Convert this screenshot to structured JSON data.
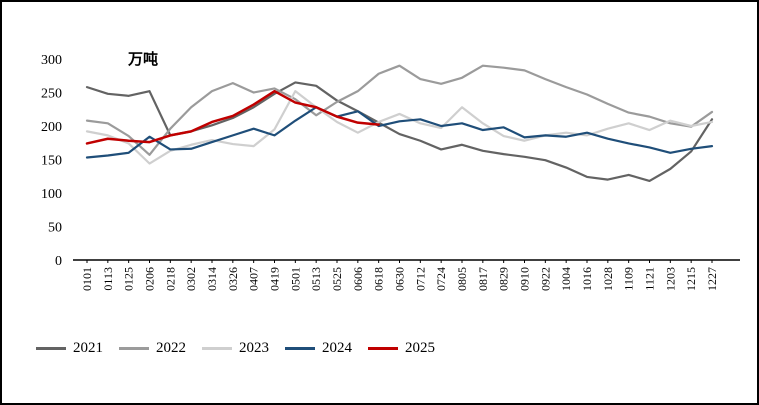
{
  "unit_label": "万吨",
  "chart_data": {
    "type": "line",
    "title": "",
    "xlabel": "",
    "ylabel": "万吨",
    "ylim": [
      0,
      300
    ],
    "yticks": [
      0,
      50,
      100,
      150,
      200,
      250,
      300
    ],
    "grid": false,
    "legend_position": "bottom",
    "x": [
      "0101",
      "0113",
      "0125",
      "0206",
      "0218",
      "0302",
      "0314",
      "0326",
      "0407",
      "0419",
      "0501",
      "0513",
      "0525",
      "0606",
      "0618",
      "0630",
      "0712",
      "0724",
      "0805",
      "0817",
      "0829",
      "0910",
      "0922",
      "1004",
      "1016",
      "1028",
      "1109",
      "1121",
      "1203",
      "1215",
      "1227"
    ],
    "series": [
      {
        "name": "2021",
        "color": "#636363",
        "stroke_width": 2.2,
        "values": [
          258,
          248,
          245,
          252,
          186,
          192,
          201,
          212,
          228,
          248,
          265,
          260,
          238,
          222,
          205,
          188,
          178,
          165,
          172,
          163,
          158,
          154,
          149,
          138,
          124,
          120,
          127,
          118,
          136,
          162,
          210
        ]
      },
      {
        "name": "2022",
        "color": "#9b9b9b",
        "stroke_width": 2.2,
        "values": [
          208,
          204,
          185,
          157,
          196,
          228,
          252,
          264,
          250,
          256,
          240,
          216,
          236,
          252,
          278,
          290,
          270,
          263,
          272,
          290,
          287,
          283,
          270,
          258,
          247,
          233,
          220,
          214,
          204,
          199,
          221
        ]
      },
      {
        "name": "2023",
        "color": "#cfcfcf",
        "stroke_width": 2.2,
        "values": [
          192,
          186,
          174,
          144,
          163,
          172,
          179,
          173,
          170,
          195,
          252,
          228,
          206,
          190,
          206,
          218,
          204,
          197,
          228,
          204,
          185,
          178,
          186,
          190,
          186,
          196,
          204,
          194,
          208,
          200,
          206
        ]
      },
      {
        "name": "2024",
        "color": "#1f4e79",
        "stroke_width": 2.2,
        "values": [
          153,
          156,
          160,
          184,
          165,
          166,
          176,
          186,
          196,
          186,
          208,
          228,
          214,
          222,
          200,
          207,
          210,
          200,
          204,
          194,
          198,
          183,
          186,
          184,
          190,
          181,
          174,
          168,
          160,
          166,
          170
        ]
      },
      {
        "name": "2025",
        "color": "#c00000",
        "stroke_width": 2.5,
        "values": [
          174,
          181,
          178,
          176,
          186,
          192,
          206,
          215,
          232,
          252,
          235,
          228,
          214,
          205,
          202,
          null,
          null,
          null,
          null,
          null,
          null,
          null,
          null,
          null,
          null,
          null,
          null,
          null,
          null,
          null,
          null
        ]
      }
    ]
  }
}
